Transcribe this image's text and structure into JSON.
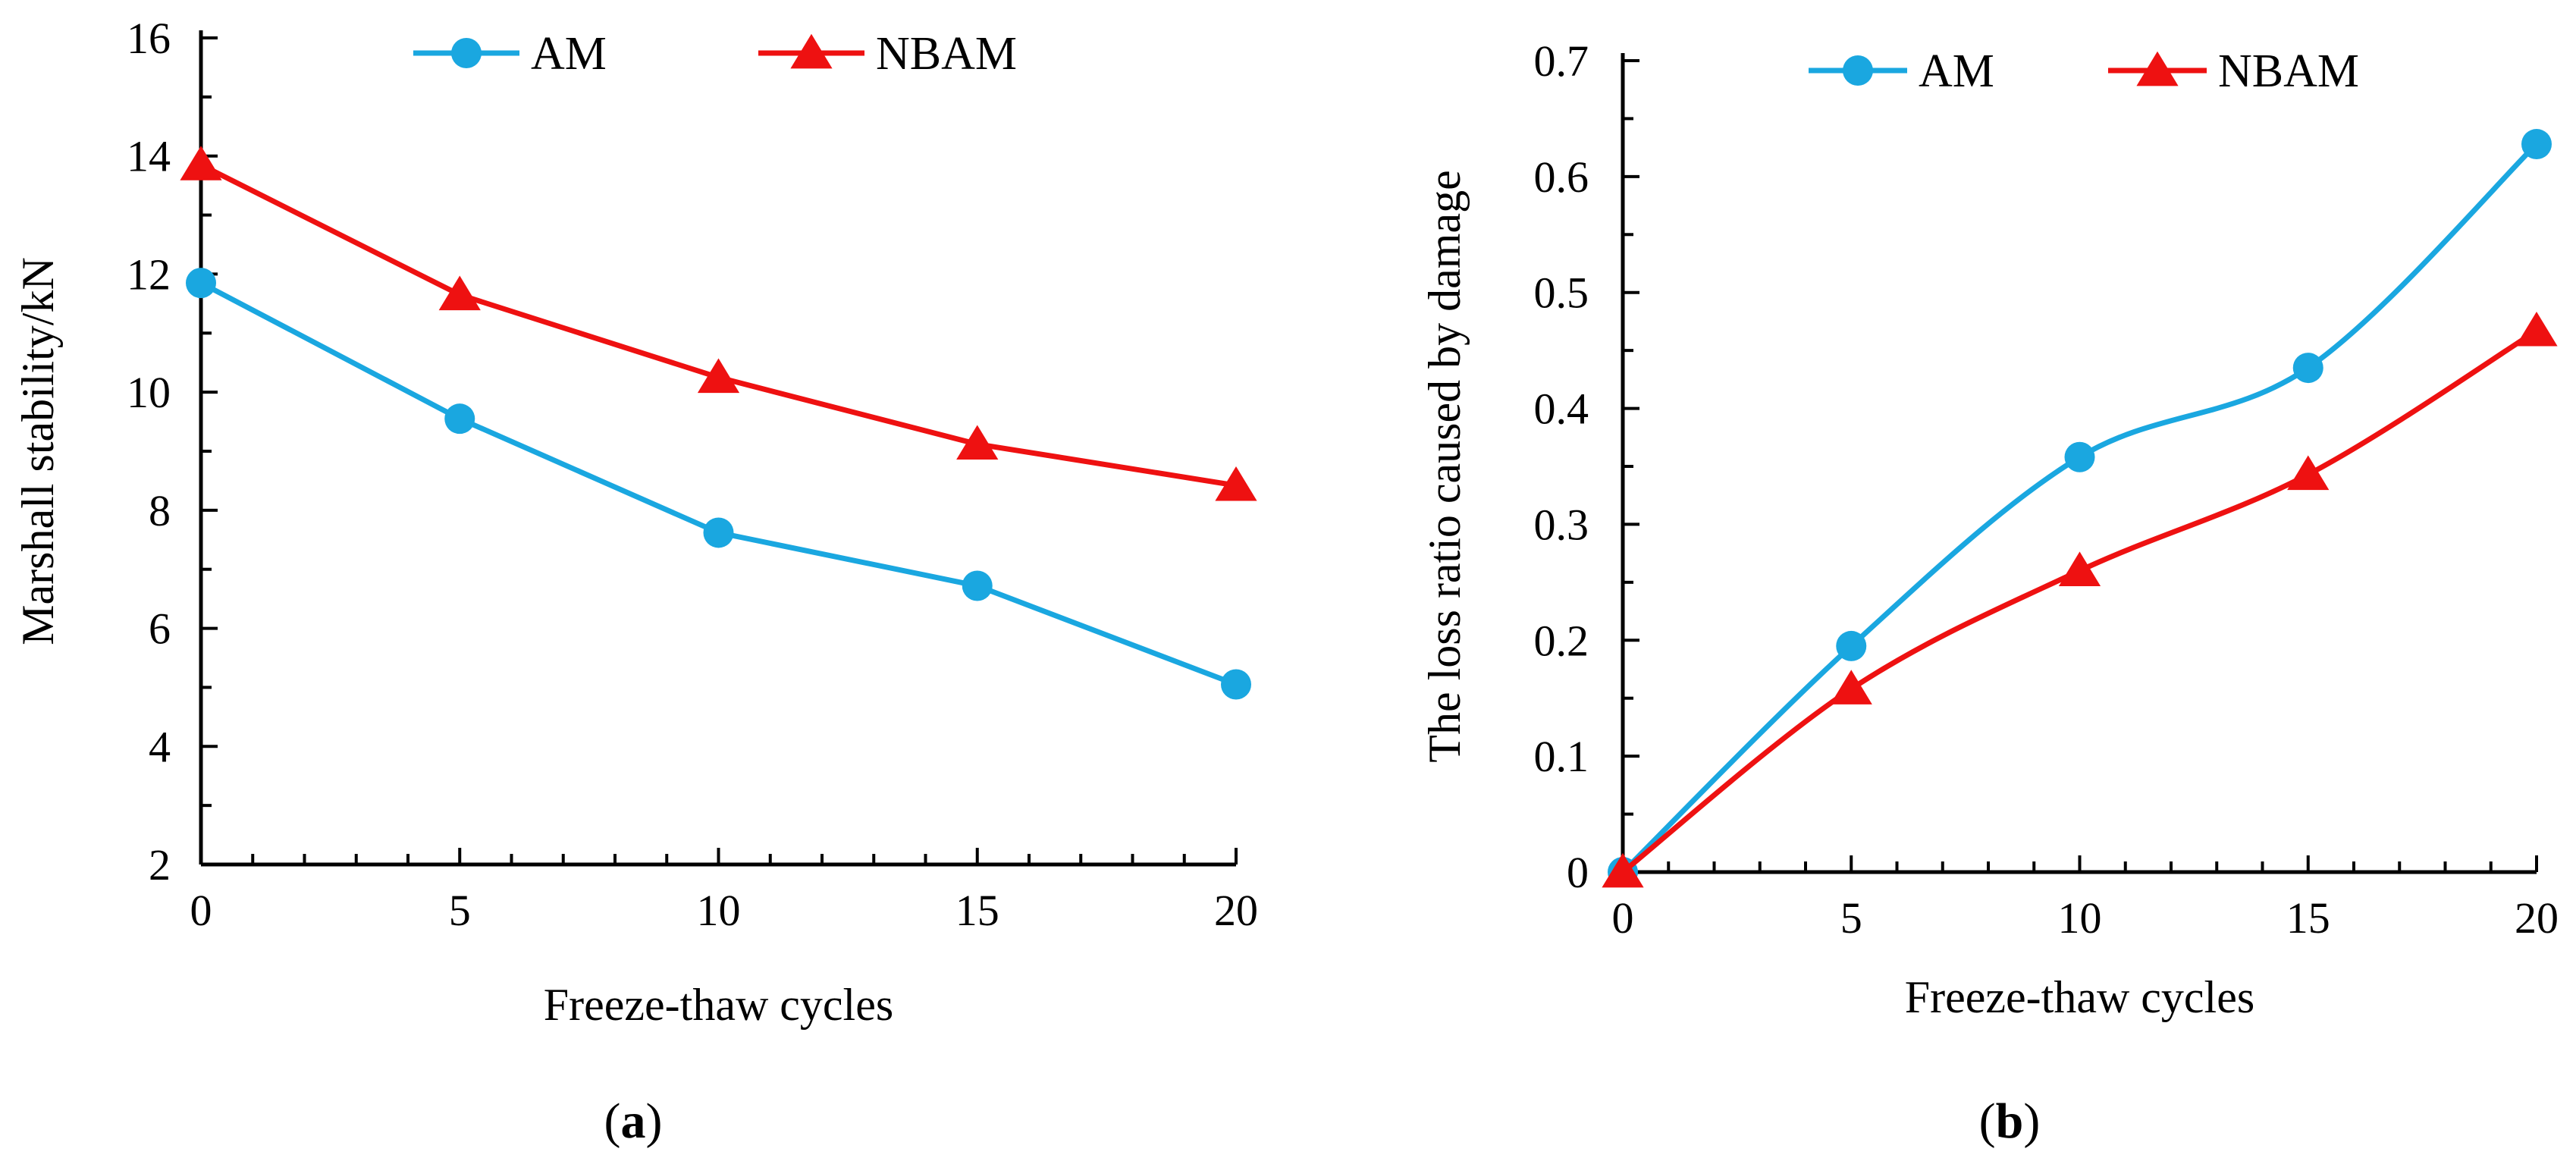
{
  "chart_data": [
    {
      "type": "line",
      "panel_label": "a",
      "xlabel": "Freeze-thaw cycles",
      "ylabel": "Marshall stability/kN",
      "x": [
        0,
        5,
        10,
        15,
        20
      ],
      "xlim": [
        0,
        20
      ],
      "ylim": [
        2,
        16
      ],
      "xticks": [
        "0",
        "5",
        "10",
        "15",
        "20"
      ],
      "yticks": [
        "2",
        "4",
        "6",
        "8",
        "10",
        "12",
        "14",
        "16"
      ],
      "smooth": false,
      "legend_position": "top",
      "series": [
        {
          "name": "AM",
          "marker": "circle",
          "color": "#1aa7e0",
          "values": [
            11.85,
            9.55,
            7.62,
            6.72,
            5.05
          ]
        },
        {
          "name": "NBAM",
          "marker": "triangle",
          "color": "#ee1111",
          "values": [
            13.85,
            11.65,
            10.25,
            9.12,
            8.42
          ]
        }
      ]
    },
    {
      "type": "line",
      "panel_label": "b",
      "xlabel": "Freeze-thaw cycles",
      "ylabel": "The loss ratio caused by damage",
      "x": [
        0,
        5,
        10,
        15,
        20
      ],
      "xlim": [
        0,
        20
      ],
      "ylim": [
        0,
        0.7
      ],
      "xticks": [
        "0",
        "5",
        "10",
        "15",
        "20"
      ],
      "yticks": [
        "0",
        "0.1",
        "0.2",
        "0.3",
        "0.4",
        "0.5",
        "0.6",
        "0.7"
      ],
      "smooth": true,
      "legend_position": "top",
      "series": [
        {
          "name": "AM",
          "marker": "circle",
          "color": "#1aa7e0",
          "values": [
            0,
            0.195,
            0.358,
            0.435,
            0.628
          ]
        },
        {
          "name": "NBAM",
          "marker": "triangle",
          "color": "#ee1111",
          "values": [
            0,
            0.158,
            0.26,
            0.343,
            0.467
          ]
        }
      ]
    }
  ],
  "captions": {
    "a": {
      "open": "(",
      "letter": "a",
      "close": ")"
    },
    "b": {
      "open": "(",
      "letter": "b",
      "close": ")"
    }
  }
}
